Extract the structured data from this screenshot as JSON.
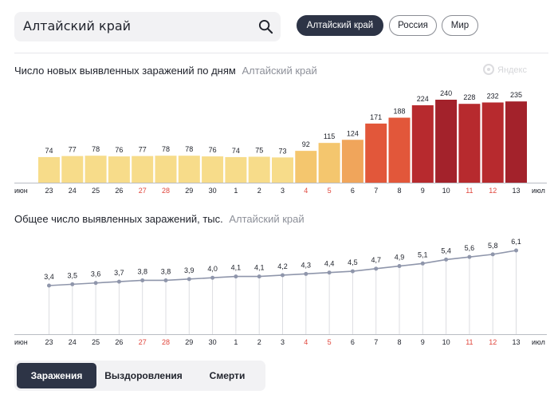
{
  "search": {
    "value": "Алтайский край"
  },
  "region_buttons": [
    {
      "label": "Алтайский край",
      "active": true
    },
    {
      "label": "Россия",
      "active": false
    },
    {
      "label": "Мир",
      "active": false
    }
  ],
  "watermark": "Яндекс",
  "tabs": [
    {
      "label": "Заражения",
      "active": true
    },
    {
      "label": "Выздоровления",
      "active": false
    },
    {
      "label": "Смерти",
      "active": false
    }
  ],
  "colors": {
    "accent": "#2d3446",
    "weekend_tick": "#e0463c",
    "line": "#8f96ab",
    "bar_scale": [
      "#f7dc8a",
      "#f4c66e",
      "#f0a55b",
      "#e2573a",
      "#b72a2e",
      "#a3222b"
    ]
  },
  "chart_data": [
    {
      "type": "bar",
      "title": "Число новых выявленных заражений по дням",
      "subtitle": "Алтайский край",
      "x_start_label": "июн",
      "x_end_label": "июл",
      "categories": [
        "23",
        "24",
        "25",
        "26",
        "27",
        "28",
        "29",
        "30",
        "1",
        "2",
        "3",
        "4",
        "5",
        "6",
        "7",
        "8",
        "9",
        "10",
        "11",
        "12",
        "13"
      ],
      "weekend": [
        false,
        false,
        false,
        false,
        true,
        true,
        false,
        false,
        false,
        false,
        false,
        true,
        true,
        false,
        false,
        false,
        false,
        false,
        true,
        true,
        false
      ],
      "values": [
        74,
        77,
        78,
        76,
        77,
        78,
        78,
        76,
        74,
        75,
        73,
        92,
        115,
        124,
        171,
        188,
        224,
        240,
        228,
        232,
        235
      ],
      "value_labels": [
        "74",
        "77",
        "78",
        "76",
        "77",
        "78",
        "78",
        "76",
        "74",
        "75",
        "73",
        "92",
        "115",
        "124",
        "171",
        "188",
        "224",
        "240",
        "228",
        "232",
        "235"
      ],
      "ylim": [
        0,
        240
      ]
    },
    {
      "type": "line",
      "title": "Общее число выявленных заражений, тыс.",
      "subtitle": "Алтайский край",
      "x_start_label": "июн",
      "x_end_label": "июл",
      "categories": [
        "23",
        "24",
        "25",
        "26",
        "27",
        "28",
        "29",
        "30",
        "1",
        "2",
        "3",
        "4",
        "5",
        "6",
        "7",
        "8",
        "9",
        "10",
        "11",
        "12",
        "13"
      ],
      "weekend": [
        false,
        false,
        false,
        false,
        true,
        true,
        false,
        false,
        false,
        false,
        false,
        true,
        true,
        false,
        false,
        false,
        false,
        false,
        true,
        true,
        false
      ],
      "values": [
        3.4,
        3.5,
        3.6,
        3.7,
        3.8,
        3.8,
        3.9,
        4.0,
        4.1,
        4.1,
        4.2,
        4.3,
        4.4,
        4.5,
        4.7,
        4.9,
        5.1,
        5.4,
        5.6,
        5.8,
        6.1
      ],
      "value_labels": [
        "3,4",
        "3,5",
        "3,6",
        "3,7",
        "3,8",
        "3,8",
        "3,9",
        "4,0",
        "4,1",
        "4,1",
        "4,2",
        "4,3",
        "4,4",
        "4,5",
        "4,7",
        "4,9",
        "5,1",
        "5,4",
        "5,6",
        "5,8",
        "6,1"
      ]
    }
  ]
}
